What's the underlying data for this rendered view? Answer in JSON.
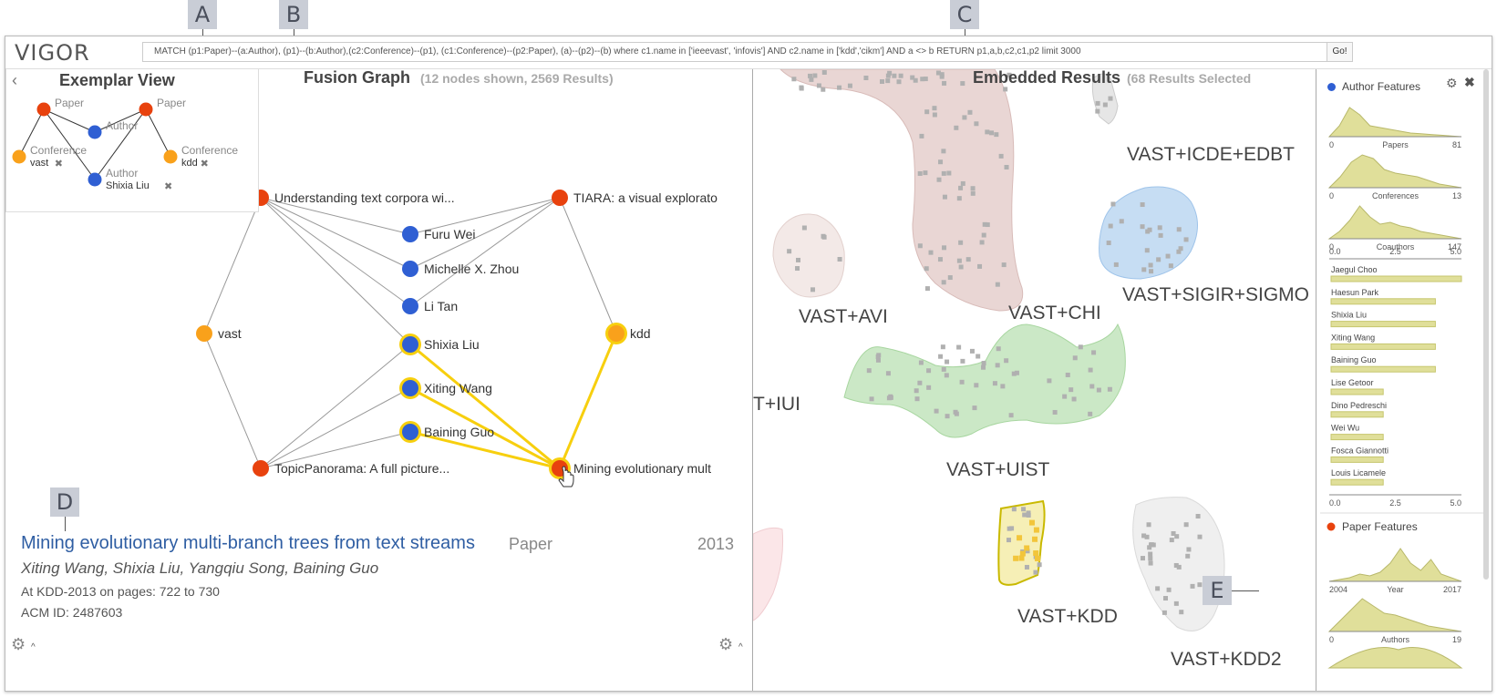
{
  "callouts": {
    "a": "A",
    "b": "B",
    "c": "C",
    "d": "D",
    "e": "E"
  },
  "app": {
    "logo": "VIGOR"
  },
  "query": {
    "text": "MATCH (p1:Paper)--(a:Author), (p1)--(b:Author),(c2:Conference)--(p1), (c1:Conference)--(p2:Paper), (a)--(p2)--(b)  where c1.name in ['ieeevast', 'infovis'] AND c2.name in ['kdd','cikm'] AND a <> b  RETURN p1,a,b,c2,c1,p2 limit 3000",
    "go_label": "Go!"
  },
  "exemplar": {
    "title": "Exemplar View",
    "back_icon": "‹",
    "nodes": [
      {
        "type": "Paper",
        "sub": "",
        "color": "#e8420e"
      },
      {
        "type": "Author",
        "sub": "",
        "color": "#2f5fd3"
      },
      {
        "type": "Paper",
        "sub": "",
        "color": "#e8420e"
      },
      {
        "type": "Conference",
        "sub": "vast",
        "color": "#f9a11b"
      },
      {
        "type": "Author",
        "sub": "Shixia Liu",
        "color": "#2f5fd3"
      },
      {
        "type": "Conference",
        "sub": "kdd",
        "color": "#f9a11b"
      }
    ]
  },
  "fusion": {
    "title": "Fusion Graph",
    "subtitle": "(12 nodes shown, 2569 Results)",
    "nodes": [
      {
        "label": "Understanding text corpora wi...",
        "kind": "paper"
      },
      {
        "label": "TIARA: a visual explorato",
        "kind": "paper"
      },
      {
        "label": "Furu Wei",
        "kind": "author"
      },
      {
        "label": "Michelle X. Zhou",
        "kind": "author"
      },
      {
        "label": "Li Tan",
        "kind": "author"
      },
      {
        "label": "vast",
        "kind": "conf"
      },
      {
        "label": "Shixia Liu",
        "kind": "author",
        "highlight": true
      },
      {
        "label": "kdd",
        "kind": "conf",
        "highlight": true
      },
      {
        "label": "Xiting Wang",
        "kind": "author",
        "highlight": true
      },
      {
        "label": "Baining Guo",
        "kind": "author",
        "highlight": true
      },
      {
        "label": "TopicPanorama: A full picture...",
        "kind": "paper"
      },
      {
        "label": "Mining evolutionary mult",
        "kind": "paper",
        "highlight": true
      }
    ]
  },
  "detail": {
    "title": "Mining evolutionary multi-branch trees from text streams",
    "type": "Paper",
    "year": "2013",
    "authors": "Xiting Wang, Shixia Liu, Yangqiu Song, Baining Guo",
    "venue": "At KDD-2013 on pages: 722 to 730",
    "acm": "ACM ID: 2487603"
  },
  "embedded": {
    "title": "Embedded Results",
    "subtitle": "(68 Results Selected",
    "clusters": [
      {
        "label": "VAST+ICDE+EDBT",
        "color": "#e3e3e3"
      },
      {
        "label": "VAST+CHI",
        "color": "#e7d2d0"
      },
      {
        "label": "VAST+SIGIR+SIGMO",
        "color": "#c5dcf2"
      },
      {
        "label": "VAST+AVI",
        "color": "#f1e7e5"
      },
      {
        "label": "T+IUI",
        "color": "#ffffff"
      },
      {
        "label": "VAST+UIST",
        "color": "#c8e6c4"
      },
      {
        "label": "VAST+KDD",
        "color": "#f5efb8"
      },
      {
        "label": "VAST+KDD2",
        "color": "#ececec"
      }
    ]
  },
  "sidebar": {
    "author_title": "Author Features",
    "paper_title": "Paper Features",
    "author_color": "#2f5fd3",
    "paper_color": "#e8420e",
    "hist_color": "#e0df9a",
    "histograms": [
      {
        "min": "0",
        "label": "Papers",
        "max": "81"
      },
      {
        "min": "0",
        "label": "Conferences",
        "max": "13"
      },
      {
        "min": "0",
        "label": "Coauthors",
        "max": "147"
      }
    ],
    "bar_axis_top": [
      "0.0",
      "2.5",
      "5.0"
    ],
    "bar_axis_bottom": [
      "0.0",
      "2.5",
      "5.0"
    ],
    "bars": [
      {
        "name": "Jaegul Choo",
        "value": 5
      },
      {
        "name": "Haesun Park",
        "value": 4
      },
      {
        "name": "Shixia Liu",
        "value": 4
      },
      {
        "name": "Xiting Wang",
        "value": 4
      },
      {
        "name": "Baining Guo",
        "value": 4
      },
      {
        "name": "Lise Getoor",
        "value": 2
      },
      {
        "name": "Dino Pedreschi",
        "value": 2
      },
      {
        "name": "Wei Wu",
        "value": 2
      },
      {
        "name": "Fosca Giannotti",
        "value": 2
      },
      {
        "name": "Louis Licamele",
        "value": 2
      }
    ],
    "paper_histograms": [
      {
        "min": "2004",
        "label": "Year",
        "max": "2017"
      },
      {
        "min": "0",
        "label": "Authors",
        "max": "19"
      }
    ]
  }
}
